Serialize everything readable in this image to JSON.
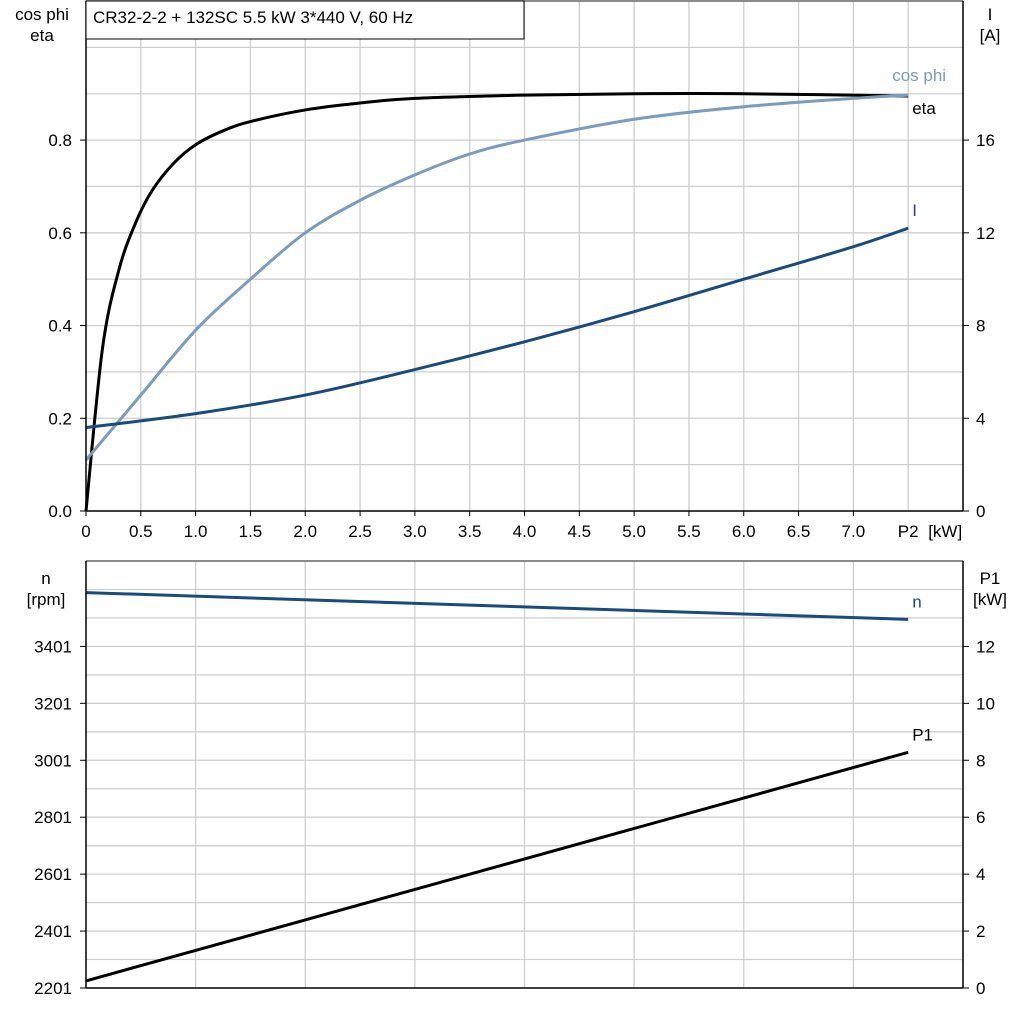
{
  "title": "CR32-2-2 + 132SC   5.5 kW   3*440 V, 60 Hz",
  "chart_data": [
    {
      "type": "line",
      "x_label": "P2 [kW]",
      "x_label_main": "P2",
      "x_label_unit": "[kW]",
      "x_ticks": [
        "0",
        "0.5",
        "1.0",
        "1.5",
        "2.0",
        "2.5",
        "3.0",
        "3.5",
        "4.0",
        "4.5",
        "5.0",
        "5.5",
        "6.0",
        "6.5",
        "7.0"
      ],
      "xlim": [
        0,
        8
      ],
      "y_left_label_1": "cos phi",
      "y_left_label_2": "eta",
      "y_left_ticks": [
        "0.0",
        "0.2",
        "0.4",
        "0.6",
        "0.8"
      ],
      "ylim_left": [
        0,
        1.1
      ],
      "y_right_label_1": "I",
      "y_right_label_2": "[A]",
      "y_right_ticks": [
        "0",
        "4",
        "8",
        "12",
        "16"
      ],
      "ylim_right": [
        0,
        22
      ],
      "grid": true,
      "series": [
        {
          "name": "eta",
          "axis": "left",
          "color": "#000000",
          "x": [
            0,
            0.15,
            0.3,
            0.45,
            0.6,
            0.8,
            1.0,
            1.25,
            1.5,
            2.0,
            2.5,
            3.0,
            4.0,
            5.0,
            6.0,
            7.5
          ],
          "y": [
            0,
            0.35,
            0.52,
            0.62,
            0.69,
            0.75,
            0.79,
            0.82,
            0.84,
            0.865,
            0.88,
            0.89,
            0.897,
            0.9,
            0.9,
            0.895
          ]
        },
        {
          "name": "cos phi",
          "axis": "left",
          "color": "#7a9cbf",
          "x": [
            0,
            0.5,
            1.0,
            1.5,
            2.0,
            2.5,
            3.0,
            3.5,
            4.0,
            5.0,
            6.0,
            7.0,
            7.5
          ],
          "y": [
            0.11,
            0.25,
            0.39,
            0.5,
            0.6,
            0.67,
            0.725,
            0.77,
            0.8,
            0.845,
            0.872,
            0.89,
            0.897
          ]
        },
        {
          "name": "I",
          "axis": "right",
          "color": "#1a4b7e",
          "x": [
            0,
            1,
            2,
            3,
            4,
            5,
            6,
            7,
            7.5
          ],
          "y": [
            3.6,
            4.2,
            5.0,
            6.1,
            7.3,
            8.6,
            10.0,
            11.4,
            12.2
          ]
        }
      ]
    },
    {
      "type": "line",
      "xlim": [
        0,
        8
      ],
      "y_left_label_1": "n",
      "y_left_label_2": "[rpm]",
      "y_left_ticks": [
        "2201",
        "2401",
        "2601",
        "2801",
        "3001",
        "3201",
        "3401"
      ],
      "ylim_left": [
        2201,
        3701
      ],
      "y_right_label_1": "P1",
      "y_right_label_2": "[kW]",
      "y_right_ticks": [
        "0",
        "2",
        "4",
        "6",
        "8",
        "10",
        "12"
      ],
      "ylim_right": [
        0,
        15
      ],
      "grid": true,
      "series": [
        {
          "name": "n",
          "axis": "left",
          "color": "#1a4b7e",
          "x": [
            0,
            7.5
          ],
          "y": [
            3590,
            3496
          ]
        },
        {
          "name": "P1",
          "axis": "right",
          "color": "#000000",
          "x": [
            0,
            7.5
          ],
          "y": [
            0.25,
            8.28
          ]
        }
      ]
    }
  ]
}
